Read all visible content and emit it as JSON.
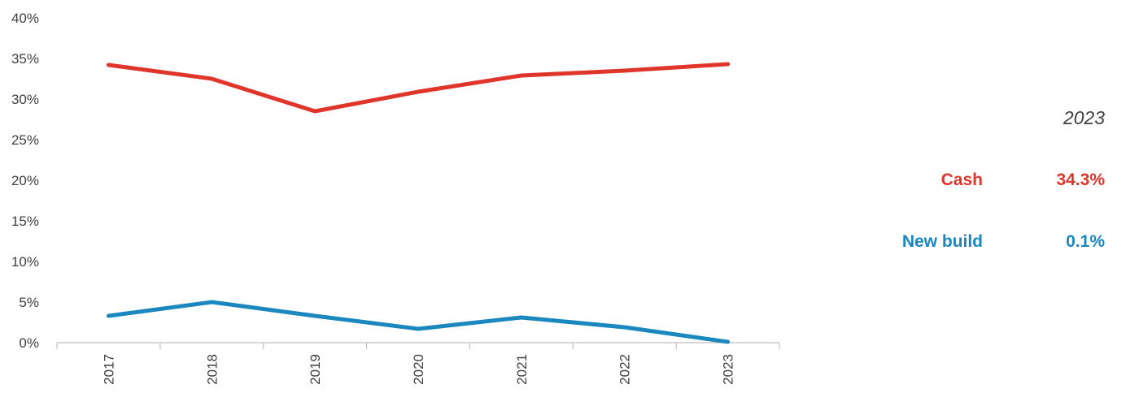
{
  "chart_data": {
    "type": "line",
    "categories": [
      "2017",
      "2018",
      "2019",
      "2020",
      "2021",
      "2022",
      "2023"
    ],
    "ylim": [
      0,
      40
    ],
    "y_ticks": [
      "0%",
      "5%",
      "10%",
      "15%",
      "20%",
      "25%",
      "30%",
      "35%",
      "40%"
    ],
    "y_tick_values": [
      0,
      5,
      10,
      15,
      20,
      25,
      30,
      35,
      40
    ],
    "grid": false,
    "legend_position": "right",
    "series": [
      {
        "name": "Cash",
        "color": "#e0352b",
        "values": [
          34.2,
          32.5,
          28.5,
          30.9,
          32.9,
          33.5,
          34.3
        ]
      },
      {
        "name": "New build",
        "color": "#1b87bf",
        "values": [
          3.3,
          5.0,
          3.3,
          1.7,
          3.1,
          1.9,
          0.1
        ]
      }
    ]
  },
  "legend": {
    "year": "2023",
    "rows": [
      {
        "name": "Cash",
        "value": "34.3%",
        "color": "#e0352b"
      },
      {
        "name": "New build",
        "value": "0.1%",
        "color": "#1b87bf"
      }
    ]
  }
}
